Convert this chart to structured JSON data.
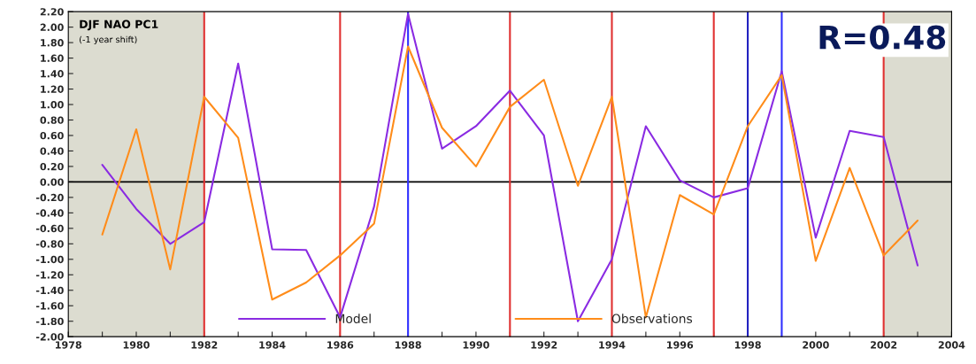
{
  "chart_data": {
    "type": "line",
    "x": [
      1979,
      1980,
      1981,
      1982,
      1983,
      1984,
      1985,
      1986,
      1987,
      1988,
      1989,
      1990,
      1991,
      1992,
      1993,
      1994,
      1995,
      1996,
      1997,
      1998,
      1999,
      2000,
      2001,
      2002,
      2003
    ],
    "series": [
      {
        "name": "Model",
        "color": "#8a2be2",
        "values": [
          0.22,
          -0.35,
          -0.8,
          -0.52,
          1.53,
          -0.87,
          -0.88,
          -1.75,
          -0.32,
          2.17,
          0.43,
          0.72,
          1.18,
          0.6,
          -1.8,
          -1.0,
          0.72,
          0.02,
          -0.2,
          -0.08,
          1.43,
          -0.72,
          0.66,
          0.58,
          -1.08
        ]
      },
      {
        "name": "Observations",
        "color": "#ff8c1a",
        "values": [
          -0.68,
          0.68,
          -1.13,
          1.1,
          0.57,
          -1.52,
          -1.3,
          -0.95,
          -0.54,
          1.75,
          0.7,
          0.2,
          0.97,
          1.32,
          -0.05,
          1.1,
          -1.75,
          -0.17,
          -0.42,
          0.72,
          1.38,
          -1.02,
          0.18,
          -0.95,
          -0.5
        ]
      }
    ],
    "xlim": [
      1978,
      2004
    ],
    "xticks": [
      1978,
      {
        "value": 1979,
        "label": null
      },
      1980,
      {
        "value": 1981,
        "label": null
      },
      1982,
      {
        "value": 1983,
        "label": null
      },
      1984,
      {
        "value": 1985,
        "label": null
      },
      1986,
      {
        "value": 1987,
        "label": null
      },
      1988,
      {
        "value": 1989,
        "label": null
      },
      1990,
      {
        "value": 1991,
        "label": null
      },
      1992,
      {
        "value": 1993,
        "label": null
      },
      1994,
      {
        "value": 1995,
        "label": null
      },
      1996,
      {
        "value": 1997,
        "label": null
      },
      1998,
      {
        "value": 1999,
        "label": null
      },
      2000,
      {
        "value": 2001,
        "label": null
      },
      2002,
      {
        "value": 2003,
        "label": null
      },
      2004
    ],
    "ylim": [
      -2.0,
      2.2
    ],
    "yticks": [
      {
        "value": -2.0,
        "label": "-2.00"
      },
      {
        "value": -1.8,
        "label": "-1.80"
      },
      {
        "value": -1.6,
        "label": "-1.60"
      },
      {
        "value": -1.4,
        "label": "-1.40"
      },
      {
        "value": -1.2,
        "label": "-1.20"
      },
      {
        "value": -1.0,
        "label": "-1.00"
      },
      {
        "value": -0.8,
        "label": "-0.80"
      },
      {
        "value": -0.6,
        "label": "-0.60"
      },
      {
        "value": -0.4,
        "label": "-0.40"
      },
      {
        "value": -0.2,
        "label": "-0.20"
      },
      {
        "value": 0,
        "label": "0.00"
      },
      {
        "value": 0.2,
        "label": "0.20"
      },
      {
        "value": 0.4,
        "label": "0.40"
      },
      {
        "value": 0.6,
        "label": "0.60"
      },
      {
        "value": 0.8,
        "label": "0.80"
      },
      {
        "value": 1.0,
        "label": "1.00"
      },
      {
        "value": 1.2,
        "label": "1.20"
      },
      {
        "value": 1.4,
        "label": "1.40"
      },
      {
        "value": 1.6,
        "label": "1.60"
      },
      {
        "value": 1.8,
        "label": "1.80"
      },
      {
        "value": 2.0,
        "label": "2.00"
      },
      {
        "value": 2.2,
        "label": "2.20"
      }
    ],
    "ref_lines": [
      {
        "axis": "y",
        "value": 0,
        "color": "#000000"
      },
      {
        "axis": "x",
        "value": 1982,
        "color": "#e03030"
      },
      {
        "axis": "x",
        "value": 1986,
        "color": "#e03030"
      },
      {
        "axis": "x",
        "value": 1988,
        "color": "#3030ff"
      },
      {
        "axis": "x",
        "value": 1991,
        "color": "#e03030"
      },
      {
        "axis": "x",
        "value": 1994,
        "color": "#e03030"
      },
      {
        "axis": "x",
        "value": 1997,
        "color": "#e03030"
      },
      {
        "axis": "x",
        "value": 1998,
        "color": "#2020c0"
      },
      {
        "axis": "x",
        "value": 1999,
        "color": "#3030ff"
      },
      {
        "axis": "x",
        "value": 2002,
        "color": "#e03030"
      }
    ],
    "bands": [
      {
        "axis": "x",
        "from": 1978,
        "to": 1982,
        "color": "#dcdcd0"
      },
      {
        "axis": "x",
        "from": 2002,
        "to": 2004,
        "color": "#dcdcd0"
      }
    ],
    "annotations": [
      "DJF NAO PC1",
      "(-1 year shift)",
      "R=0.48"
    ],
    "grid": false,
    "legend": "bottom"
  }
}
